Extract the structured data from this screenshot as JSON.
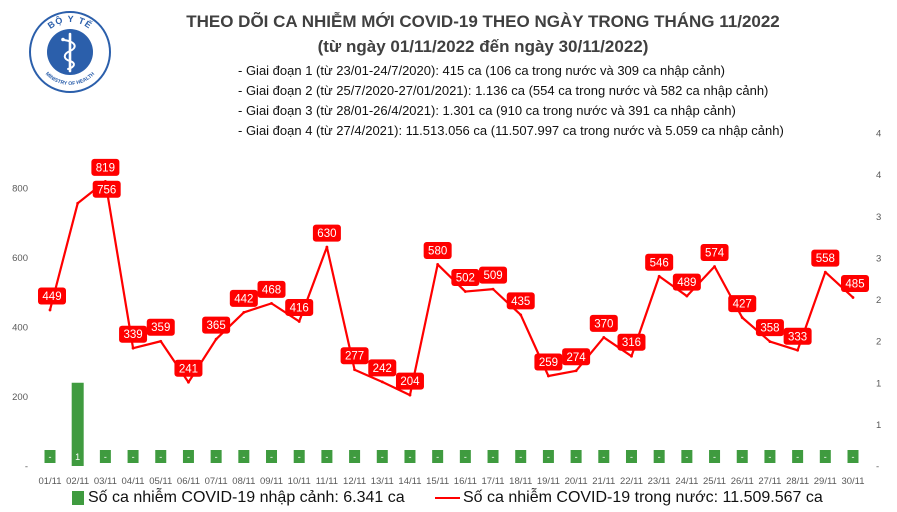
{
  "logo": {
    "text_top": "BỘ Y TẾ",
    "text_bottom": "MINISTRY OF HEALTH"
  },
  "chart_data": {
    "type": "bar",
    "title": "THEO DÕI CA NHIỄM MỚI COVID-19 THEO NGÀY TRONG THÁNG 11/2022",
    "subtitle": "(từ ngày 01/11/2022 đến ngày 30/11/2022)",
    "annotations": [
      "- Giai đoạn 1 (từ 23/01-24/7/2020): 415 ca (106 ca trong nước và 309 ca nhập cảnh)",
      "- Giai đoạn 2 (từ 25/7/2020-27/01/2021): 1.136 ca (554 ca trong nước và 582 ca nhập cảnh)",
      "- Giai đoạn 3 (từ 28/01-26/4/2021): 1.301 ca (910 ca trong nước và 391 ca nhập cảnh)",
      "- Giai đoạn 4 (từ 27/4/2021): 11.513.056 ca (11.507.997 ca trong nước và 5.059 ca nhập cảnh)"
    ],
    "xlabel": "",
    "ylabel": "",
    "categories": [
      "01/11",
      "02/11",
      "03/11",
      "04/11",
      "05/11",
      "06/11",
      "07/11",
      "08/11",
      "09/11",
      "10/11",
      "11/11",
      "12/11",
      "13/11",
      "14/11",
      "15/11",
      "16/11",
      "17/11",
      "18/11",
      "19/11",
      "20/11",
      "21/11",
      "22/11",
      "23/11",
      "24/11",
      "25/11",
      "26/11",
      "27/11",
      "28/11",
      "29/11",
      "30/11"
    ],
    "ylim": [
      0,
      800
    ],
    "yticks": [
      800,
      600,
      400,
      200,
      0
    ],
    "ytick_labels": [
      "800",
      "600",
      "400",
      "200",
      "-"
    ],
    "y2lim": [
      0,
      4
    ],
    "y2ticks": [
      4,
      3.5,
      3,
      2.5,
      2,
      1.5,
      1,
      0.5,
      0
    ],
    "y2tick_labels": [
      "4",
      "4",
      "3",
      "3",
      "2",
      "2",
      "1",
      "1",
      "-"
    ],
    "grid": false,
    "legend": "bottom",
    "series": [
      {
        "name": "Số ca nhiễm COVID-19 nhập cảnh: 6.341 ca",
        "type": "bar",
        "axis": "right",
        "color": "#3f9b3f",
        "values": [
          0,
          1,
          0,
          0,
          0,
          0,
          0,
          0,
          0,
          0,
          0,
          0,
          0,
          0,
          0,
          0,
          0,
          0,
          0,
          0,
          0,
          0,
          0,
          0,
          0,
          0,
          0,
          0,
          0,
          0
        ],
        "labels": [
          "-",
          "1",
          "-",
          "-",
          "-",
          "-",
          "-",
          "-",
          "-",
          "-",
          "-",
          "-",
          "-",
          "-",
          "-",
          "-",
          "-",
          "-",
          "-",
          "-",
          "-",
          "-",
          "-",
          "-",
          "-",
          "-",
          "-",
          "-",
          "-",
          "-"
        ]
      },
      {
        "name": "Số ca nhiễm COVID-19 trong nước: 11.509.567 ca",
        "type": "line",
        "axis": "left",
        "color": "#ff0000",
        "values": [
          449,
          756,
          819,
          339,
          359,
          241,
          365,
          442,
          468,
          416,
          630,
          277,
          242,
          204,
          580,
          502,
          509,
          435,
          259,
          274,
          370,
          316,
          546,
          489,
          574,
          427,
          358,
          333,
          558,
          485
        ]
      }
    ]
  }
}
